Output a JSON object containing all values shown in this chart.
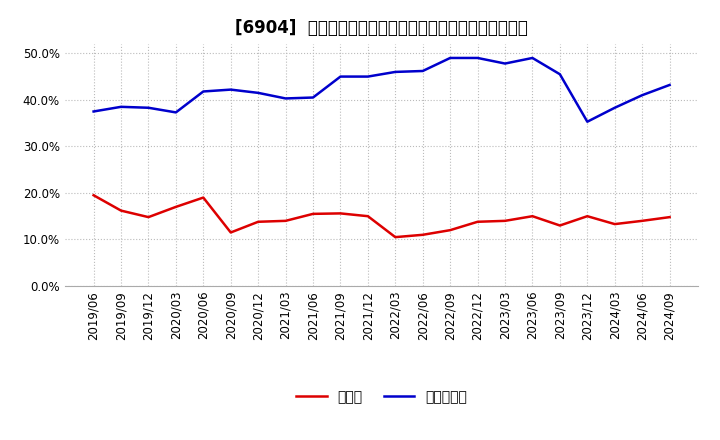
{
  "title": "[6904]  現預金、有利子負債の総資産に対する比率の推移",
  "labels": [
    "2019/06",
    "2019/09",
    "2019/12",
    "2020/03",
    "2020/06",
    "2020/09",
    "2020/12",
    "2021/03",
    "2021/06",
    "2021/09",
    "2021/12",
    "2022/03",
    "2022/06",
    "2022/09",
    "2022/12",
    "2023/03",
    "2023/06",
    "2023/09",
    "2023/12",
    "2024/03",
    "2024/06",
    "2024/09"
  ],
  "cash": [
    0.195,
    0.162,
    0.148,
    0.17,
    0.19,
    0.115,
    0.138,
    0.14,
    0.155,
    0.156,
    0.15,
    0.105,
    0.11,
    0.12,
    0.138,
    0.14,
    0.15,
    0.13,
    0.15,
    0.133,
    0.14,
    0.148
  ],
  "debt": [
    0.375,
    0.385,
    0.383,
    0.373,
    0.418,
    0.422,
    0.415,
    0.403,
    0.405,
    0.45,
    0.45,
    0.46,
    0.462,
    0.49,
    0.49,
    0.478,
    0.49,
    0.455,
    0.353,
    0.383,
    0.41,
    0.432
  ],
  "cash_color": "#dd0000",
  "debt_color": "#0000cc",
  "background_color": "#ffffff",
  "grid_color": "#bbbbbb",
  "ylim": [
    0.0,
    0.52
  ],
  "yticks": [
    0.0,
    0.1,
    0.2,
    0.3,
    0.4,
    0.5
  ],
  "legend_cash": "現預金",
  "legend_debt": "有利子負債",
  "title_fontsize": 12,
  "tick_fontsize": 8.5,
  "legend_fontsize": 10
}
